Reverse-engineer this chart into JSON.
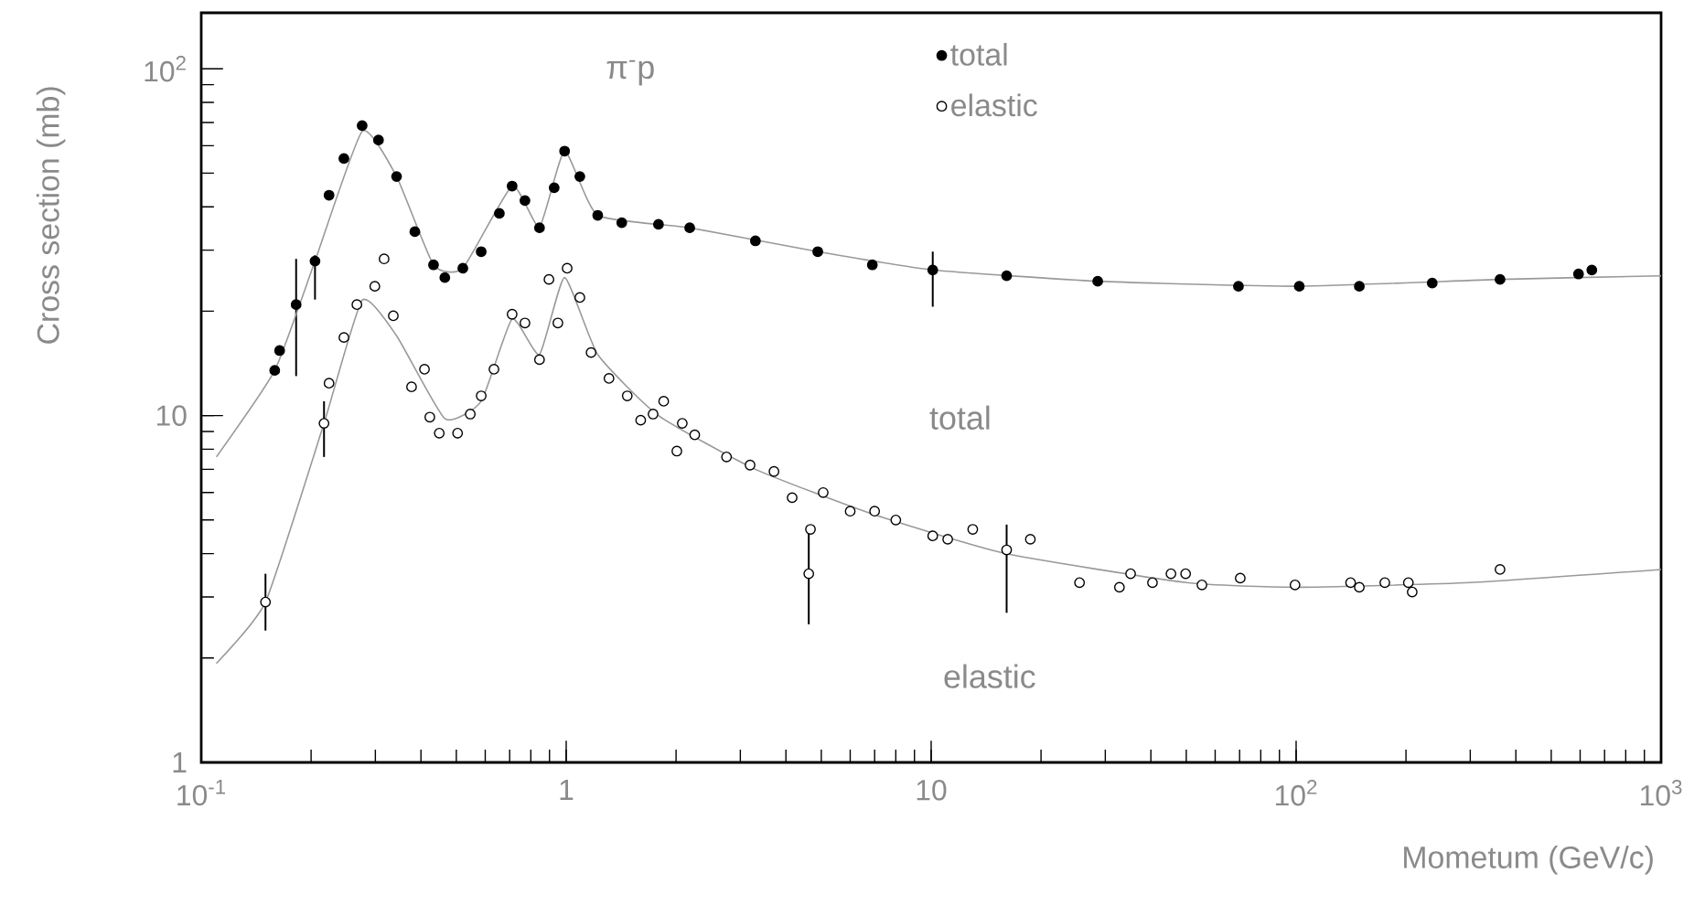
{
  "chart_data": {
    "type": "scatter",
    "xlabel": "Mometum (GeV/c)",
    "ylabel": "Cross section (mb)",
    "log": "xy",
    "xlim": [
      0.1,
      1000
    ],
    "ylim": [
      1,
      145
    ],
    "xticks": [
      {
        "value": 0.1,
        "label": "10$^{-1}$"
      },
      {
        "value": 1,
        "label": "1"
      },
      {
        "value": 10,
        "label": "10"
      },
      {
        "value": 100,
        "label": "10$^{2}$"
      },
      {
        "value": 1000,
        "label": "10$^{3}$"
      }
    ],
    "yticks": [
      {
        "value": 1,
        "label": "1"
      },
      {
        "value": 10,
        "label": "10"
      },
      {
        "value": 100,
        "label": "10$^{2}$"
      }
    ],
    "legend": "top",
    "marker": "circle",
    "annotations": [
      "π$^{-}$p",
      "total",
      "elastic"
    ],
    "series": [
      {
        "name": "total",
        "color": "#000000",
        "x": [
          0.159,
          0.164,
          0.182,
          0.205,
          0.224,
          0.246,
          0.276,
          0.306,
          0.343,
          0.385,
          0.433,
          0.465,
          0.521,
          0.585,
          0.656,
          0.711,
          0.771,
          0.845,
          0.927,
          0.99,
          1.09,
          1.22,
          1.42,
          1.79,
          2.18,
          3.3,
          4.89,
          6.9,
          10.1,
          16.1,
          28.6,
          69.5,
          102,
          149,
          236,
          362,
          594,
          646
        ],
        "values": [
          13.5,
          15.4,
          20.9,
          27.9,
          43.2,
          55.1,
          68.6,
          62.3,
          48.9,
          33.9,
          27.2,
          25.0,
          26.6,
          29.7,
          38.3,
          45.9,
          41.7,
          34.8,
          45.4,
          57.9,
          48.9,
          37.8,
          36.0,
          35.6,
          34.8,
          31.9,
          29.7,
          27.2,
          26.3,
          25.3,
          24.4,
          23.6,
          23.6,
          23.6,
          24.1,
          24.7,
          25.6,
          26.3
        ],
        "errors": [
          null,
          null,
          [
            13,
            28.3
          ],
          [
            21.6,
            29
          ],
          null,
          null,
          null,
          null,
          null,
          null,
          null,
          null,
          null,
          null,
          null,
          null,
          null,
          null,
          null,
          null,
          null,
          null,
          null,
          null,
          null,
          null,
          null,
          null,
          [
            20.6,
            29.7
          ],
          null,
          null,
          null,
          null,
          null,
          null,
          null,
          null,
          null
        ]
      },
      {
        "name": "elastic",
        "color": "#ffffff",
        "x": [
          0.15,
          0.217,
          0.224,
          0.246,
          0.267,
          0.299,
          0.317,
          0.336,
          0.377,
          0.409,
          0.423,
          0.449,
          0.504,
          0.546,
          0.585,
          0.634,
          0.711,
          0.771,
          0.845,
          0.897,
          0.949,
          1.006,
          1.09,
          1.17,
          1.31,
          1.47,
          1.6,
          1.73,
          1.85,
          2.01,
          2.08,
          2.25,
          2.75,
          3.19,
          3.71,
          4.16,
          4.67,
          4.62,
          5.06,
          6.0,
          7.0,
          8.0,
          10.1,
          11.1,
          13.0,
          16.1,
          18.7,
          25.5,
          32.8,
          35.2,
          40.4,
          45.4,
          49.8,
          55.2,
          70.3,
          99.3,
          141,
          149,
          175,
          203,
          208,
          362
        ],
        "values": [
          2.9,
          9.5,
          12.4,
          16.8,
          20.9,
          23.6,
          28.3,
          19.4,
          12.1,
          13.6,
          9.9,
          8.9,
          8.9,
          10.1,
          11.4,
          13.6,
          19.6,
          18.5,
          14.5,
          24.7,
          18.5,
          26.6,
          21.9,
          15.2,
          12.8,
          11.4,
          9.7,
          10.1,
          11.0,
          7.9,
          9.5,
          8.8,
          7.6,
          7.2,
          6.9,
          5.8,
          4.7,
          3.5,
          6.0,
          5.3,
          5.3,
          5.0,
          4.5,
          4.4,
          4.7,
          4.1,
          4.4,
          3.3,
          3.2,
          3.5,
          3.3,
          3.5,
          3.5,
          3.25,
          3.4,
          3.25,
          3.3,
          3.2,
          3.3,
          3.3,
          3.1,
          3.6
        ],
        "errors": [
          [
            2.4,
            3.5
          ],
          [
            7.6,
            11
          ],
          null,
          null,
          null,
          null,
          null,
          null,
          null,
          null,
          null,
          null,
          null,
          null,
          null,
          null,
          null,
          null,
          null,
          null,
          null,
          null,
          null,
          null,
          null,
          null,
          null,
          null,
          null,
          null,
          null,
          null,
          null,
          null,
          null,
          null,
          null,
          [
            2.5,
            4.7
          ],
          null,
          null,
          null,
          null,
          null,
          null,
          null,
          [
            2.7,
            4.85
          ],
          null,
          null,
          null,
          null,
          null,
          null,
          null,
          null,
          null,
          null,
          null,
          null,
          null,
          null,
          null,
          null
        ]
      },
      {
        "type": "line",
        "color": "#999999",
        "marker": "none",
        "x": [
          0.11,
          0.159,
          0.205,
          0.276,
          0.343,
          0.433,
          0.521,
          0.711,
          0.845,
          0.99,
          1.22,
          2.18,
          4.89,
          10.1,
          28.6,
          100,
          362,
          1000
        ],
        "values": [
          7.6,
          13.5,
          27.9,
          66,
          48.9,
          27.2,
          26.6,
          45.9,
          35,
          57.9,
          37.8,
          34.8,
          29.7,
          26.3,
          24.4,
          23.6,
          24.7,
          25.3
        ]
      },
      {
        "type": "line",
        "color": "#999999",
        "marker": "none",
        "x": [
          0.11,
          0.15,
          0.217,
          0.276,
          0.343,
          0.465,
          0.585,
          0.711,
          0.845,
          0.99,
          1.22,
          1.79,
          3.3,
          6.9,
          16,
          50,
          100,
          300,
          1000
        ],
        "values": [
          1.93,
          2.9,
          9.5,
          21.5,
          17,
          9.8,
          11.0,
          19,
          15,
          25,
          15,
          10,
          7,
          5.2,
          4.0,
          3.3,
          3.2,
          3.3,
          3.6
        ]
      }
    ]
  }
}
